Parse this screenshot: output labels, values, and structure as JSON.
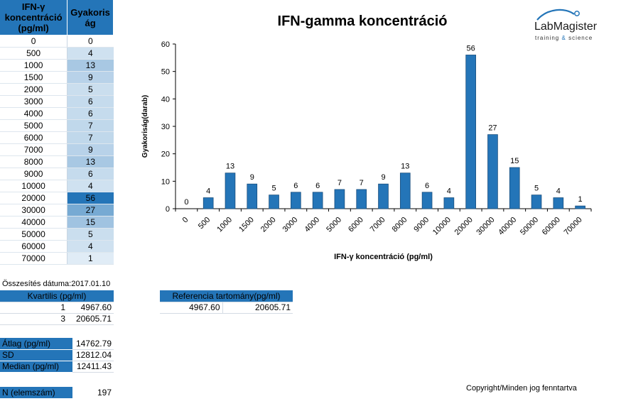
{
  "table": {
    "header_col1": "IFN-γ koncentráció (pg/ml)",
    "header_col2": "Gyakoris ág",
    "rows": [
      {
        "conc": "0",
        "freq": "0"
      },
      {
        "conc": "500",
        "freq": "4"
      },
      {
        "conc": "1000",
        "freq": "13"
      },
      {
        "conc": "1500",
        "freq": "9"
      },
      {
        "conc": "2000",
        "freq": "5"
      },
      {
        "conc": "3000",
        "freq": "6"
      },
      {
        "conc": "4000",
        "freq": "6"
      },
      {
        "conc": "5000",
        "freq": "7"
      },
      {
        "conc": "6000",
        "freq": "7"
      },
      {
        "conc": "7000",
        "freq": "9"
      },
      {
        "conc": "8000",
        "freq": "13"
      },
      {
        "conc": "9000",
        "freq": "6"
      },
      {
        "conc": "10000",
        "freq": "4"
      },
      {
        "conc": "20000",
        "freq": "56"
      },
      {
        "conc": "30000",
        "freq": "27"
      },
      {
        "conc": "40000",
        "freq": "15"
      },
      {
        "conc": "50000",
        "freq": "5"
      },
      {
        "conc": "60000",
        "freq": "4"
      },
      {
        "conc": "70000",
        "freq": "1"
      }
    ]
  },
  "summary": {
    "date_label": "Összesítés dátuma:",
    "date_value": "2017.01.10",
    "quartile_header": "Kvartilis (pg/ml)",
    "q1_label": "1",
    "q1_value": "4967.60",
    "q3_label": "3",
    "q3_value": "20605.71",
    "mean_label": "Átlag (pg/ml)",
    "mean_value": "14762.79",
    "sd_label": "SD",
    "sd_value": "12812.04",
    "median_label": "Median (pg/ml)",
    "median_value": "12411.43",
    "n_label": "N (elemszám)",
    "n_value": "197"
  },
  "reference": {
    "header": "Referencia tartomány(pg/ml)",
    "low": "4967.60",
    "high": "20605.71"
  },
  "logo": {
    "name": "LabMagister",
    "tagline_left": "training",
    "tagline_amp": "&",
    "tagline_right": "science"
  },
  "copyright": "Copyright/Minden jog fenntartva",
  "colors": {
    "bar": "#2475b8",
    "header": "#2475b8",
    "heat_low": "#eaf2f9",
    "heat_high": "#2475b8"
  },
  "chart_data": {
    "type": "bar",
    "title": "IFN-gamma koncentráció",
    "xlabel": "IFN-γ koncentráció (pg/ml)",
    "ylabel": "Gyakoriság(darab)",
    "categories": [
      "0",
      "500",
      "1000",
      "1500",
      "2000",
      "3000",
      "4000",
      "5000",
      "6000",
      "7000",
      "8000",
      "9000",
      "10000",
      "20000",
      "30000",
      "40000",
      "50000",
      "60000",
      "70000"
    ],
    "values": [
      0,
      4,
      13,
      9,
      5,
      6,
      6,
      7,
      7,
      9,
      13,
      6,
      4,
      56,
      27,
      15,
      5,
      4,
      1
    ],
    "ylim": [
      0,
      60
    ],
    "yticks": [
      0,
      10,
      20,
      30,
      40,
      50,
      60
    ],
    "grid": false,
    "legend": "none",
    "data_labels": true
  }
}
